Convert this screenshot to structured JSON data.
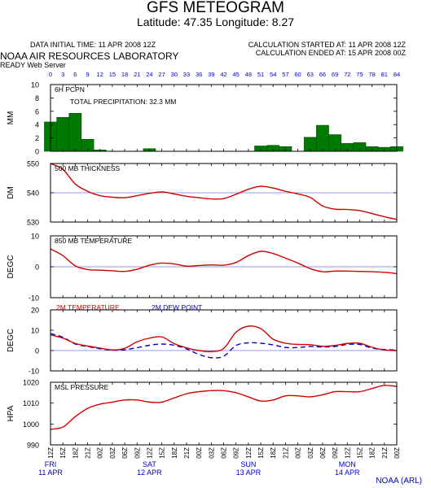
{
  "header": {
    "title": "GFS METEOGRAM",
    "location": "Latitude: 47.35 Longitude:    8.27",
    "init_time": "DATA INITIAL TIME: 11 APR 2008 12Z",
    "calc_started": "CALCULATION STARTED AT: 11 APR 2008 12Z",
    "calc_ended": "CALCULATION ENDED AT: 15 APR 2008 00Z",
    "org": "NOAA AIR RESOURCES LABORATORY",
    "server": "READY Web Server",
    "footer": "NOAA (ARL)"
  },
  "colors": {
    "precip_bar": "#007a00",
    "line": "#d40000",
    "dewpoint": "#0000cc",
    "reference": "#9999dd",
    "label_blue": "#0000cc",
    "label_red": "#cc0000"
  },
  "forecast_hours": [
    0,
    3,
    6,
    9,
    12,
    15,
    18,
    21,
    24,
    27,
    30,
    33,
    36,
    39,
    42,
    45,
    48,
    51,
    54,
    57,
    60,
    63,
    66,
    69,
    72,
    75,
    78,
    81,
    84
  ],
  "time_labels": [
    "12Z",
    "15Z",
    "18Z",
    "21Z",
    "00Z",
    "03Z",
    "06Z",
    "09Z",
    "12Z",
    "15Z",
    "18Z",
    "21Z",
    "00Z",
    "03Z",
    "06Z",
    "09Z",
    "12Z",
    "15Z",
    "18Z",
    "21Z",
    "00Z",
    "03Z",
    "06Z",
    "09Z",
    "12Z",
    "15Z",
    "18Z",
    "21Z",
    "00Z"
  ],
  "day_labels": [
    {
      "day": "FRI",
      "date": "11 APR",
      "index": 0
    },
    {
      "day": "SAT",
      "date": "12 APR",
      "index": 8
    },
    {
      "day": "SUN",
      "date": "13 APR",
      "index": 16
    },
    {
      "day": "MON",
      "date": "14 APR",
      "index": 24
    }
  ],
  "chart_data": [
    {
      "type": "bar",
      "title": "6H PCPN",
      "annotation": "TOTAL PRECIPITATION:  32.3 MM",
      "ylabel": "MM",
      "ylim": [
        0,
        10
      ],
      "yticks": [
        0,
        2,
        4,
        6,
        8,
        10
      ],
      "x": [
        0,
        3,
        6,
        9,
        12,
        15,
        18,
        21,
        24,
        27,
        30,
        33,
        36,
        39,
        42,
        45,
        48,
        51,
        54,
        57,
        60,
        63,
        66,
        69,
        72,
        75,
        78,
        81,
        84
      ],
      "values": [
        4.4,
        5.1,
        5.7,
        1.8,
        0.2,
        0,
        0,
        0,
        0.4,
        0,
        0,
        0,
        0,
        0,
        0,
        0,
        0,
        0.8,
        0.9,
        0.7,
        0,
        2.1,
        3.9,
        2.5,
        1.2,
        1.3,
        0.7,
        0.6,
        0.7
      ]
    },
    {
      "type": "line",
      "title": "500 MB  THICKNESS",
      "ylabel": "DM",
      "ylim": [
        530,
        550
      ],
      "yticks": [
        530,
        540,
        550
      ],
      "reference": 540,
      "x": [
        0,
        3,
        6,
        9,
        12,
        15,
        18,
        21,
        24,
        27,
        30,
        33,
        36,
        39,
        42,
        45,
        48,
        51,
        54,
        57,
        60,
        63,
        66,
        69,
        72,
        75,
        78,
        81,
        84
      ],
      "values": [
        550,
        548,
        543,
        540.5,
        539,
        538.5,
        538.3,
        539,
        539.8,
        540.3,
        539.6,
        538.8,
        538.3,
        537.9,
        538,
        539.5,
        541.2,
        542.2,
        541.6,
        540.5,
        539.6,
        538.4,
        535.5,
        534.4,
        534.3,
        533.9,
        532.9,
        531.8,
        530.9
      ]
    },
    {
      "type": "line",
      "title": "850 MB  TEMPERATURE",
      "ylabel": "DEGC",
      "ylim": [
        -10,
        10
      ],
      "yticks": [
        -10,
        0,
        10
      ],
      "reference": 0,
      "x": [
        0,
        3,
        6,
        9,
        12,
        15,
        18,
        21,
        24,
        27,
        30,
        33,
        36,
        39,
        42,
        45,
        48,
        51,
        54,
        57,
        60,
        63,
        66,
        69,
        72,
        75,
        78,
        81,
        84
      ],
      "values": [
        5.8,
        3.6,
        0.3,
        -0.9,
        -1.1,
        -1.3,
        -1.5,
        -0.8,
        0.5,
        1.2,
        0.9,
        0.2,
        0.4,
        0.6,
        0.5,
        1.4,
        3.6,
        5.0,
        4.3,
        2.8,
        1.2,
        -0.6,
        -1.6,
        -1.4,
        -1.4,
        -1.5,
        -1.6,
        -1.8,
        -2.2
      ]
    },
    {
      "type": "line",
      "title": "",
      "ylabel": "DEGC",
      "ylim": [
        -10,
        20
      ],
      "yticks": [
        -10,
        0,
        10,
        20
      ],
      "reference": 0,
      "series": [
        {
          "name": "2M TEMPERATURE",
          "values": [
            7.7,
            6.1,
            3.5,
            2.2,
            1.2,
            0.3,
            1.1,
            4.3,
            6.1,
            6.7,
            3.4,
            1.3,
            0.0,
            -0.5,
            1.0,
            9.0,
            12.0,
            10.8,
            5.6,
            3.6,
            3.0,
            2.9,
            2.1,
            2.5,
            3.5,
            3.6,
            1.6,
            0.3,
            0.0
          ]
        },
        {
          "name": "2M   DEW POINT",
          "values": [
            8.3,
            6.6,
            3.2,
            2.0,
            0.9,
            0.2,
            0.4,
            1.4,
            2.6,
            3.2,
            2.6,
            0.8,
            -1.9,
            -3.5,
            -2.8,
            2.5,
            3.8,
            3.6,
            2.8,
            1.5,
            1.5,
            2.0,
            1.8,
            2.0,
            3.0,
            3.0,
            1.2,
            0.5,
            0.2
          ]
        }
      ]
    },
    {
      "type": "line",
      "title": "MSL PRESSURE",
      "ylabel": "HPA",
      "ylim": [
        990,
        1020
      ],
      "yticks": [
        990,
        1000,
        1010,
        1020
      ],
      "x": [
        0,
        3,
        6,
        9,
        12,
        15,
        18,
        21,
        24,
        27,
        30,
        33,
        36,
        39,
        42,
        45,
        48,
        51,
        54,
        57,
        60,
        63,
        66,
        69,
        72,
        75,
        78,
        81,
        84
      ],
      "values": [
        997.5,
        998.5,
        1003.5,
        1007.5,
        1009.5,
        1010.5,
        1011.5,
        1011.5,
        1010.5,
        1010.5,
        1012.5,
        1014.5,
        1015.5,
        1016.0,
        1016.0,
        1015.0,
        1013.0,
        1011.0,
        1011.5,
        1013.5,
        1013.5,
        1013.0,
        1014.0,
        1015.5,
        1015.5,
        1015.5,
        1017.0,
        1018.5,
        1018.0
      ]
    }
  ]
}
